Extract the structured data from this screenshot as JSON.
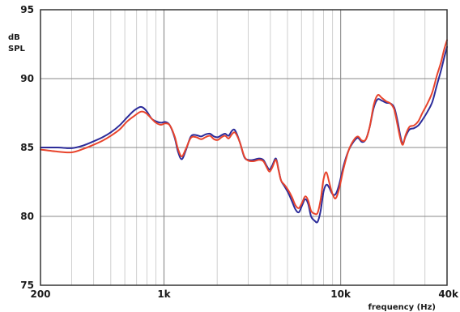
{
  "chart_data": {
    "type": "line",
    "title": "",
    "ylabel_line1": "dB",
    "ylabel_line2": "SPL",
    "xlabel": "frequency (Hz)",
    "x_scale": "log",
    "xlim": [
      200,
      40000
    ],
    "ylim": [
      75,
      95
    ],
    "x_tick_labels": [
      {
        "value": 200,
        "label": "200"
      },
      {
        "value": 1000,
        "label": "1k"
      },
      {
        "value": 10000,
        "label": "10k"
      },
      {
        "value": 40000,
        "label": "40k"
      }
    ],
    "y_tick_labels": [
      {
        "value": 95,
        "label": "95"
      },
      {
        "value": 90,
        "label": "90"
      },
      {
        "value": 85,
        "label": "85"
      },
      {
        "value": 80,
        "label": "80"
      },
      {
        "value": 75,
        "label": "75"
      }
    ],
    "grid": true,
    "series": [
      {
        "color": "#2c2c9a",
        "points": [
          [
            200,
            85.0
          ],
          [
            250,
            85.0
          ],
          [
            300,
            84.95
          ],
          [
            350,
            85.15
          ],
          [
            400,
            85.45
          ],
          [
            450,
            85.75
          ],
          [
            500,
            86.1
          ],
          [
            560,
            86.6
          ],
          [
            620,
            87.2
          ],
          [
            680,
            87.7
          ],
          [
            740,
            87.95
          ],
          [
            790,
            87.7
          ],
          [
            850,
            87.1
          ],
          [
            900,
            86.9
          ],
          [
            960,
            86.8
          ],
          [
            1020,
            86.85
          ],
          [
            1080,
            86.6
          ],
          [
            1150,
            85.7
          ],
          [
            1200,
            84.7
          ],
          [
            1260,
            84.15
          ],
          [
            1330,
            84.8
          ],
          [
            1420,
            85.8
          ],
          [
            1520,
            85.9
          ],
          [
            1620,
            85.8
          ],
          [
            1720,
            85.95
          ],
          [
            1820,
            86.0
          ],
          [
            1920,
            85.8
          ],
          [
            2020,
            85.75
          ],
          [
            2120,
            85.9
          ],
          [
            2220,
            86.0
          ],
          [
            2320,
            85.85
          ],
          [
            2420,
            86.2
          ],
          [
            2500,
            86.3
          ],
          [
            2580,
            86.0
          ],
          [
            2700,
            85.3
          ],
          [
            2850,
            84.3
          ],
          [
            3000,
            84.1
          ],
          [
            3200,
            84.1
          ],
          [
            3450,
            84.2
          ],
          [
            3650,
            84.1
          ],
          [
            3800,
            83.7
          ],
          [
            3950,
            83.4
          ],
          [
            4100,
            83.7
          ],
          [
            4300,
            84.2
          ],
          [
            4450,
            83.4
          ],
          [
            4600,
            82.6
          ],
          [
            4800,
            82.2
          ],
          [
            5050,
            81.7
          ],
          [
            5300,
            81.1
          ],
          [
            5550,
            80.5
          ],
          [
            5800,
            80.3
          ],
          [
            6050,
            80.8
          ],
          [
            6300,
            81.25
          ],
          [
            6550,
            80.9
          ],
          [
            6800,
            80.0
          ],
          [
            7100,
            79.7
          ],
          [
            7400,
            79.6
          ],
          [
            7700,
            80.4
          ],
          [
            8000,
            81.8
          ],
          [
            8300,
            82.3
          ],
          [
            8600,
            82.1
          ],
          [
            8950,
            81.65
          ],
          [
            9350,
            81.6
          ],
          [
            9800,
            82.3
          ],
          [
            10400,
            83.7
          ],
          [
            11100,
            84.8
          ],
          [
            11800,
            85.4
          ],
          [
            12500,
            85.7
          ],
          [
            13200,
            85.4
          ],
          [
            13900,
            85.6
          ],
          [
            14600,
            86.5
          ],
          [
            15400,
            87.9
          ],
          [
            16200,
            88.5
          ],
          [
            17100,
            88.4
          ],
          [
            18100,
            88.25
          ],
          [
            19100,
            88.2
          ],
          [
            20100,
            87.9
          ],
          [
            21000,
            86.9
          ],
          [
            21800,
            85.8
          ],
          [
            22500,
            85.3
          ],
          [
            23300,
            85.8
          ],
          [
            24500,
            86.3
          ],
          [
            26000,
            86.4
          ],
          [
            27500,
            86.6
          ],
          [
            29000,
            87.0
          ],
          [
            31000,
            87.6
          ],
          [
            33000,
            88.3
          ],
          [
            35000,
            89.5
          ],
          [
            37000,
            90.6
          ],
          [
            38500,
            91.5
          ],
          [
            40000,
            92.3
          ]
        ]
      },
      {
        "color": "#e8442c",
        "points": [
          [
            200,
            84.85
          ],
          [
            250,
            84.7
          ],
          [
            300,
            84.65
          ],
          [
            350,
            84.9
          ],
          [
            400,
            85.2
          ],
          [
            450,
            85.5
          ],
          [
            500,
            85.85
          ],
          [
            560,
            86.3
          ],
          [
            620,
            86.9
          ],
          [
            680,
            87.3
          ],
          [
            740,
            87.6
          ],
          [
            790,
            87.5
          ],
          [
            850,
            87.1
          ],
          [
            900,
            86.8
          ],
          [
            960,
            86.65
          ],
          [
            1020,
            86.75
          ],
          [
            1080,
            86.6
          ],
          [
            1150,
            85.8
          ],
          [
            1200,
            84.9
          ],
          [
            1260,
            84.35
          ],
          [
            1330,
            84.9
          ],
          [
            1420,
            85.7
          ],
          [
            1520,
            85.75
          ],
          [
            1620,
            85.6
          ],
          [
            1720,
            85.75
          ],
          [
            1820,
            85.85
          ],
          [
            1920,
            85.6
          ],
          [
            2020,
            85.55
          ],
          [
            2120,
            85.75
          ],
          [
            2220,
            85.85
          ],
          [
            2320,
            85.65
          ],
          [
            2420,
            85.95
          ],
          [
            2500,
            86.1
          ],
          [
            2580,
            85.9
          ],
          [
            2700,
            85.3
          ],
          [
            2850,
            84.35
          ],
          [
            3000,
            84.05
          ],
          [
            3200,
            84.0
          ],
          [
            3450,
            84.1
          ],
          [
            3650,
            84.0
          ],
          [
            3800,
            83.6
          ],
          [
            3950,
            83.25
          ],
          [
            4100,
            83.55
          ],
          [
            4300,
            84.1
          ],
          [
            4450,
            83.35
          ],
          [
            4600,
            82.6
          ],
          [
            4800,
            82.3
          ],
          [
            5050,
            81.9
          ],
          [
            5300,
            81.4
          ],
          [
            5550,
            80.8
          ],
          [
            5800,
            80.6
          ],
          [
            6050,
            81.0
          ],
          [
            6300,
            81.45
          ],
          [
            6550,
            81.15
          ],
          [
            6800,
            80.4
          ],
          [
            7100,
            80.2
          ],
          [
            7400,
            80.25
          ],
          [
            7700,
            81.2
          ],
          [
            8000,
            82.7
          ],
          [
            8300,
            83.2
          ],
          [
            8600,
            82.5
          ],
          [
            8950,
            81.7
          ],
          [
            9350,
            81.3
          ],
          [
            9800,
            82.0
          ],
          [
            10400,
            83.5
          ],
          [
            11100,
            84.8
          ],
          [
            11800,
            85.5
          ],
          [
            12500,
            85.8
          ],
          [
            13200,
            85.5
          ],
          [
            13900,
            85.6
          ],
          [
            14600,
            86.5
          ],
          [
            15400,
            88.1
          ],
          [
            16200,
            88.8
          ],
          [
            17100,
            88.6
          ],
          [
            18100,
            88.35
          ],
          [
            19100,
            88.2
          ],
          [
            20100,
            87.75
          ],
          [
            21000,
            86.6
          ],
          [
            21800,
            85.6
          ],
          [
            22500,
            85.2
          ],
          [
            23300,
            85.9
          ],
          [
            24500,
            86.5
          ],
          [
            26000,
            86.6
          ],
          [
            27500,
            86.9
          ],
          [
            29000,
            87.5
          ],
          [
            31000,
            88.2
          ],
          [
            33000,
            89.0
          ],
          [
            35000,
            90.2
          ],
          [
            37000,
            91.2
          ],
          [
            38500,
            92.1
          ],
          [
            40000,
            92.8
          ]
        ]
      }
    ]
  }
}
